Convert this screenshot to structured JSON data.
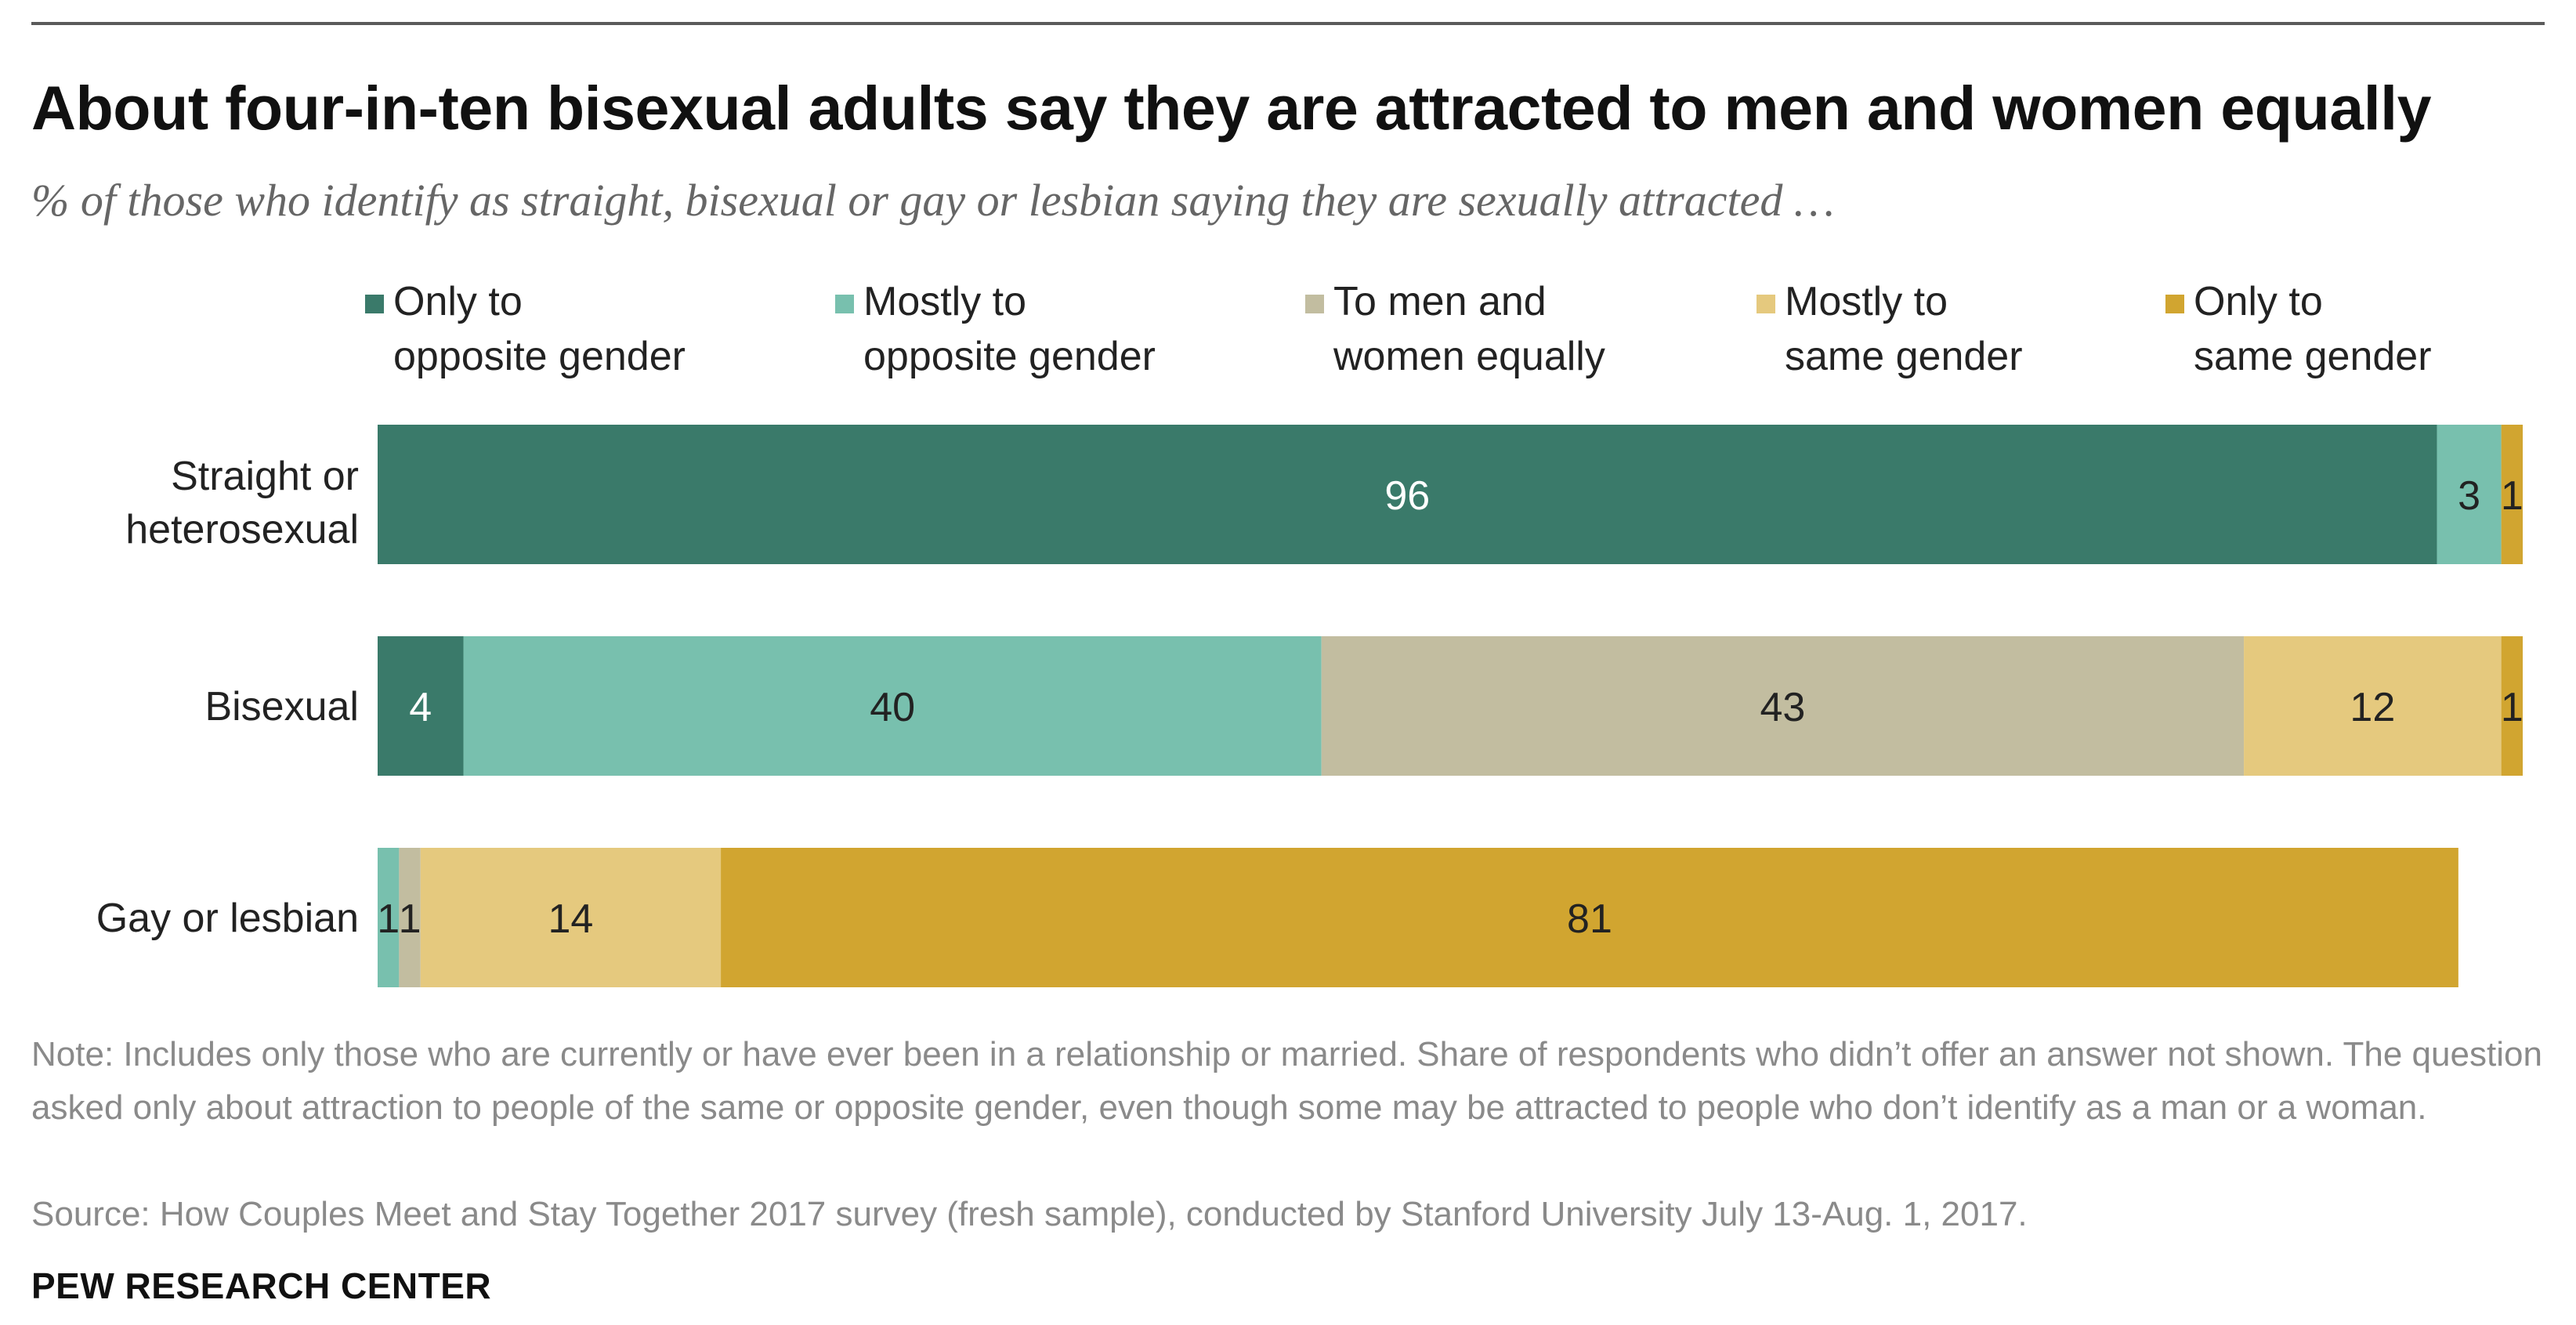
{
  "header": {
    "title": "About four-in-ten bisexual adults say they are attracted to men and women equally",
    "subtitle": "% of those who identify as straight, bisexual or gay or lesbian saying they are sexually attracted …"
  },
  "chart_data": {
    "type": "bar",
    "orientation": "horizontal",
    "stacked": true,
    "categories": [
      "Straight or heterosexual",
      "Bisexual",
      "Gay or lesbian"
    ],
    "category_labels": [
      "Straight or\nheterosexual",
      "Bisexual",
      "Gay or lesbian"
    ],
    "series": [
      {
        "name": "Only to opposite gender",
        "legend_label": "Only to\nopposite gender",
        "color": "#3a7a6a",
        "label_color": "#ffffff",
        "values": [
          96,
          4,
          0
        ]
      },
      {
        "name": "Mostly to opposite gender",
        "legend_label": "Mostly to\nopposite gender",
        "color": "#78c0ae",
        "label_color": "#222222",
        "values": [
          3,
          40,
          1
        ]
      },
      {
        "name": "To men and women equally",
        "legend_label": "To men and\nwomen equally",
        "color": "#c2bda0",
        "label_color": "#222222",
        "values": [
          0,
          43,
          1
        ]
      },
      {
        "name": "Mostly to same gender",
        "legend_label": "Mostly to\nsame gender",
        "color": "#e5c97e",
        "label_color": "#222222",
        "values": [
          0,
          12,
          14
        ]
      },
      {
        "name": "Only to same gender",
        "legend_label": "Only to\nsame gender",
        "color": "#d1a530",
        "label_color": "#222222",
        "values": [
          1,
          1,
          81
        ]
      }
    ],
    "xlim": [
      0,
      100
    ],
    "grid": false,
    "legend_position": "top"
  },
  "footer": {
    "note": "Note: Includes only those who are currently or have ever been in a relationship or married. Share of respondents who didn’t offer an answer not shown. The question asked only about attraction to people of the same or opposite gender, even though some may be attracted to people who don’t identify as a man or a woman.",
    "source": "Source: How Couples Meet and Stay Together 2017 survey (fresh sample), conducted by Stanford University July 13-Aug. 1, 2017.",
    "credit": "PEW RESEARCH CENTER"
  }
}
